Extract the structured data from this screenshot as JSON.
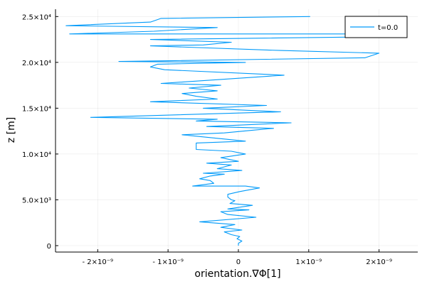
{
  "chart_data": {
    "type": "line",
    "title": "",
    "xlabel": "orientation.∇Φ[1]",
    "ylabel": "z [m]",
    "xlim": [
      -2.6e-09,
      2.55e-09
    ],
    "ylim": [
      -700,
      25800
    ],
    "grid": true,
    "legend_position": "top-right",
    "series_color": "#009af9",
    "x_ticks": [
      {
        "value": -2e-09,
        "label": "- 2×10⁻⁹"
      },
      {
        "value": -1e-09,
        "label": "- 1×10⁻⁹"
      },
      {
        "value": 0,
        "label": "0"
      },
      {
        "value": 1e-09,
        "label": "1×10⁻⁹"
      },
      {
        "value": 2e-09,
        "label": "2×10⁻⁹"
      }
    ],
    "y_ticks": [
      {
        "value": 0,
        "label": "0"
      },
      {
        "value": 5000,
        "label": "5.0×10³"
      },
      {
        "value": 10000,
        "label": "1.0×10⁴"
      },
      {
        "value": 15000,
        "label": "1.5×10⁴"
      },
      {
        "value": 20000,
        "label": "2.0×10⁴"
      },
      {
        "value": 25000,
        "label": "2.5×10⁴"
      }
    ],
    "series": [
      {
        "name": "t=0.0",
        "points": [
          [
            0,
            0
          ],
          [
            0,
            250
          ],
          [
            5e-11,
            500
          ],
          [
            -2e-11,
            750
          ],
          [
            2e-11,
            1000
          ],
          [
            -1e-10,
            1200
          ],
          [
            -2e-10,
            1500
          ],
          [
            5e-11,
            1700
          ],
          [
            -2.5e-10,
            2000
          ],
          [
            -5e-11,
            2300
          ],
          [
            -5.5e-10,
            2600
          ],
          [
            2.5e-10,
            3100
          ],
          [
            -1.5e-10,
            3400
          ],
          [
            -2.5e-10,
            3700
          ],
          [
            1.5e-10,
            3900
          ],
          [
            -1.5e-10,
            4000
          ],
          [
            2e-10,
            4400
          ],
          [
            -1.2e-10,
            4600
          ],
          [
            -5e-11,
            4900
          ],
          [
            -1e-10,
            5000
          ],
          [
            -1.5e-10,
            5300
          ],
          [
            -1.5e-10,
            5600
          ],
          [
            2e-11,
            5900
          ],
          [
            3e-10,
            6300
          ],
          [
            1e-10,
            6500
          ],
          [
            -6.5e-10,
            6500
          ],
          [
            -3.5e-10,
            6800
          ],
          [
            -4e-10,
            7100
          ],
          [
            -5.5e-10,
            7300
          ],
          [
            -4e-10,
            7600
          ],
          [
            -2e-10,
            7800
          ],
          [
            -5e-10,
            7900
          ],
          [
            5e-11,
            8200
          ],
          [
            -3e-10,
            8400
          ],
          [
            -1e-10,
            8800
          ],
          [
            -4.5e-10,
            9000
          ],
          [
            0.0,
            9200
          ],
          [
            -2.5e-10,
            9600
          ],
          [
            1e-10,
            10000
          ],
          [
            -1e-10,
            10300
          ],
          [
            -6e-10,
            10500
          ],
          [
            -6e-10,
            11200
          ],
          [
            1e-10,
            11400
          ],
          [
            -8e-10,
            12100
          ],
          [
            -2e-10,
            12300
          ],
          [
            2e-10,
            12600
          ],
          [
            5e-10,
            12800
          ],
          [
            -4.5e-10,
            13000
          ],
          [
            7.5e-10,
            13400
          ],
          [
            -6e-10,
            13600
          ],
          [
            -3e-10,
            13800
          ],
          [
            -2.1e-09,
            14000
          ],
          [
            6e-10,
            14600
          ],
          [
            -5e-10,
            15000
          ],
          [
            4e-10,
            15300
          ],
          [
            -1.25e-09,
            15700
          ],
          [
            -3e-10,
            16000
          ],
          [
            -6e-10,
            16300
          ],
          [
            -8e-10,
            16600
          ],
          [
            -3e-10,
            16900
          ],
          [
            -7e-10,
            17200
          ],
          [
            -2.5e-10,
            17500
          ],
          [
            -1.1e-09,
            17700
          ],
          [
            6.5e-10,
            18600
          ],
          [
            -1.05e-09,
            19200
          ],
          [
            -1.25e-09,
            19500
          ],
          [
            -1.15e-09,
            19800
          ],
          [
            1e-10,
            20000
          ],
          [
            -1.7e-09,
            20100
          ],
          [
            1.8e-09,
            20500
          ],
          [
            2e-09,
            21000
          ],
          [
            6e-10,
            21300
          ],
          [
            -1.25e-09,
            21800
          ],
          [
            -5e-10,
            21900
          ],
          [
            -1e-10,
            22200
          ],
          [
            -1.25e-09,
            22500
          ],
          [
            2.1e-09,
            22800
          ],
          [
            1.9e-09,
            23100
          ],
          [
            -2.4e-09,
            23100
          ],
          [
            -1.2e-09,
            23400
          ],
          [
            -3e-10,
            23800
          ],
          [
            -2.45e-09,
            24000
          ],
          [
            -1.25e-09,
            24400
          ],
          [
            -1.1e-09,
            24800
          ],
          [
            1.02e-09,
            25000
          ]
        ]
      }
    ]
  }
}
